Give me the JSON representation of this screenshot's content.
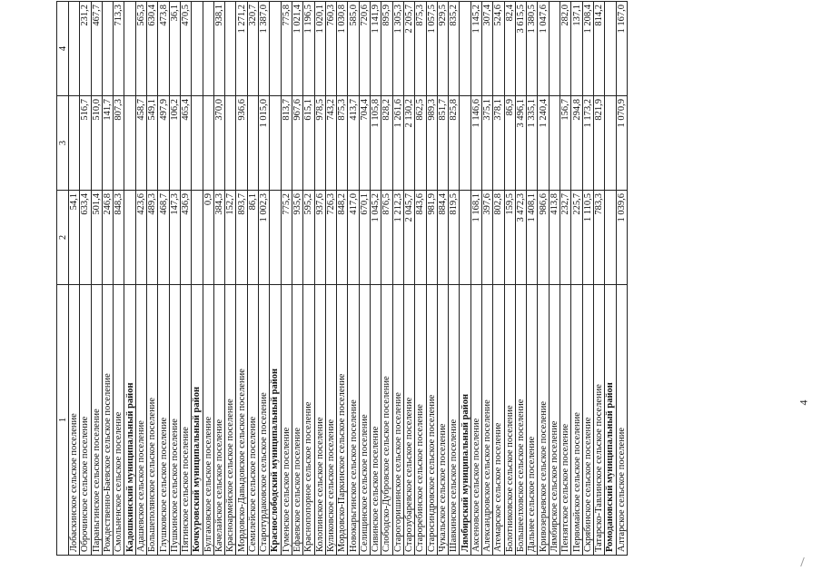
{
  "page_number": "4",
  "header": [
    "1",
    "2",
    "3",
    "4"
  ],
  "rows": [
    {
      "name": "Лобаскинское сельское поселение",
      "v2": "54,1",
      "v3": "",
      "v4": ""
    },
    {
      "name": "Оброчинское сельское поселение",
      "v2": "633,4",
      "v3": "516,7",
      "v4": "231,2"
    },
    {
      "name": "Параньгинское сельское поселение",
      "v2": "501,4",
      "v3": "510,0",
      "v4": "467,7"
    },
    {
      "name": "Рождественно-Баевское сельское поселение",
      "v2": "246,8",
      "v3": "141,7",
      "v4": ""
    },
    {
      "name": "Смольненское сельское поселение",
      "v2": "848,3",
      "v3": "807,3",
      "v4": "713,3"
    },
    {
      "name": "Кадошкинский муниципальный район",
      "v2": "",
      "v3": "",
      "v4": "",
      "district": true
    },
    {
      "name": "Адашевское сельское поселение",
      "v2": "423,6",
      "v3": "458,7",
      "v4": "565,3"
    },
    {
      "name": "Большеполянское сельское поселение",
      "v2": "489,3",
      "v3": "549,1",
      "v4": "630,4"
    },
    {
      "name": "Глушковское сельское поселение",
      "v2": "468,7",
      "v3": "497,9",
      "v4": "473,8"
    },
    {
      "name": "Пушкинское сельское поселение",
      "v2": "147,3",
      "v3": "106,2",
      "v4": "36,1"
    },
    {
      "name": "Пятинское сельское поселение",
      "v2": "436,9",
      "v3": "465,4",
      "v4": "470,5"
    },
    {
      "name": "Кочкуровский муниципальный район",
      "v2": "",
      "v3": "",
      "v4": "",
      "district": true
    },
    {
      "name": "Булгаковское сельское поселение",
      "v2": "0,9",
      "v3": "",
      "v4": ""
    },
    {
      "name": "Качелайское сельское поселение",
      "v2": "384,3",
      "v3": "370,0",
      "v4": "938,1"
    },
    {
      "name": "Красноармейское сельское поселение",
      "v2": "152,7",
      "v3": "",
      "v4": ""
    },
    {
      "name": "Мордовско-Давыдовское сельское поселение",
      "v2": "893,7",
      "v3": "936,6",
      "v4": "1 271,2"
    },
    {
      "name": "Семилейское сельское поселение",
      "v2": "86,1",
      "v3": "",
      "v4": "320,7"
    },
    {
      "name": "Старотурдаковское сельское поселение",
      "v2": "1 002,3",
      "v3": "1 015,0",
      "v4": "1 387,0"
    },
    {
      "name": "Краснослободский муниципальный район",
      "v2": "",
      "v3": "",
      "v4": "",
      "district": true
    },
    {
      "name": "Гуменское сельское поселение",
      "v2": "775,2",
      "v3": "813,7",
      "v4": "775,8"
    },
    {
      "name": "Ефаевское сельское поселение",
      "v2": "935,6",
      "v3": "967,6",
      "v4": "1 021,4"
    },
    {
      "name": "Краснопопорное сельское поселение",
      "v2": "595,2",
      "v3": "615,1",
      "v4": "1 196,5"
    },
    {
      "name": "Колопинское сельское поселение",
      "v2": "937,6",
      "v3": "978,5",
      "v4": "1 020,1"
    },
    {
      "name": "Куликовское сельское поселение",
      "v2": "726,3",
      "v3": "743,2",
      "v4": "760,3"
    },
    {
      "name": "Мордовско-Паркинское сельское поселение",
      "v2": "848,2",
      "v3": "875,3",
      "v4": "1 030,8"
    },
    {
      "name": "Новокарьгинское сельское поселение",
      "v2": "417,0",
      "v3": "413,7",
      "v4": "585,0"
    },
    {
      "name": "Селищинское сельское поселение",
      "v2": "670,1",
      "v3": "704,4",
      "v4": "720,6"
    },
    {
      "name": "Сивинское сельское поселение",
      "v2": "1 045,2",
      "v3": "1 105,8",
      "v4": "1 141,9"
    },
    {
      "name": "Слободско-Дубровское сельское поселение",
      "v2": "876,5",
      "v3": "828,2",
      "v4": "895,9"
    },
    {
      "name": "Старогоришинское сельское поселение",
      "v2": "1 212,3",
      "v3": "1 261,6",
      "v4": "1 305,3"
    },
    {
      "name": "Старозубаревское сельское поселение",
      "v2": "2 045,7",
      "v3": "2 130,2",
      "v4": "2 205,7"
    },
    {
      "name": "Староребинское сельское поселение",
      "v2": "843,6",
      "v3": "862,5",
      "v4": "875,3"
    },
    {
      "name": "Старосиндровское сельское поселение",
      "v2": "981,9",
      "v3": "989,3",
      "v4": "1 057,5"
    },
    {
      "name": "Чукальское сельское поселение",
      "v2": "884,4",
      "v3": "851,7",
      "v4": "929,5"
    },
    {
      "name": "Шавкинское сельское поселение",
      "v2": "819,5",
      "v3": "825,8",
      "v4": "835,2"
    },
    {
      "name": "Лямбирский муниципальный район",
      "v2": "",
      "v3": "",
      "v4": "",
      "district": true
    },
    {
      "name": "Аксеновское сельское поселение",
      "v2": "1 168,1",
      "v3": "1 146,6",
      "v4": "1 145,2"
    },
    {
      "name": "Александровское сельское поселение",
      "v2": "397,6",
      "v3": "375,1",
      "v4": "307,4"
    },
    {
      "name": "Атемарское сельское поселение",
      "v2": "802,8",
      "v3": "378,1",
      "v4": "524,6"
    },
    {
      "name": "Болотниковское сельское поселение",
      "v2": "159,5",
      "v3": "86,9",
      "v4": "82,4"
    },
    {
      "name": "Большеелховское сельское поселение",
      "v2": "3 472,3",
      "v3": "3 496,1",
      "v4": "3 615,5"
    },
    {
      "name": "Дальнее сельское поселение",
      "v2": "1 408,1",
      "v3": "1 335,1",
      "v4": "1 380,5"
    },
    {
      "name": "Кривозерьевское сельское поселение",
      "v2": "986,6",
      "v3": "1 240,4",
      "v4": "1 047,6"
    },
    {
      "name": "Лямбирское сельское поселение",
      "v2": "413,8",
      "v3": "",
      "v4": ""
    },
    {
      "name": "Пензятское сельское поселение",
      "v2": "232,7",
      "v3": "156,7",
      "v4": "282,0"
    },
    {
      "name": "Первомайское сельское поселение",
      "v2": "225,7",
      "v3": "294,8",
      "v4": "137,1"
    },
    {
      "name": "Скрябинское сельское поселение",
      "v2": "1 110,5",
      "v3": "1 173,2",
      "v4": "1 208,4"
    },
    {
      "name": "Татарско-Тавлинское сельское поселение",
      "v2": "783,3",
      "v3": "821,9",
      "v4": "814,2"
    },
    {
      "name": "Ромодановский муниципальный район",
      "v2": "",
      "v3": "",
      "v4": "",
      "district": true
    },
    {
      "name": "Алтарское сельское поселение",
      "v2": "1 039,6",
      "v3": "1 070,9",
      "v4": "1 167,0"
    }
  ]
}
